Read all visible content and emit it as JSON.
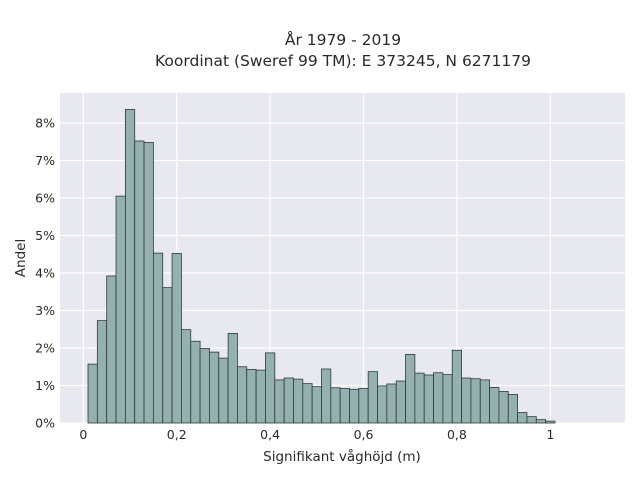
{
  "chart_data": {
    "type": "bar",
    "title_line1": "År 1979 - 2019",
    "title_line2": "Koordinat (Sweref 99 TM): E 373245, N 6271179",
    "xlabel": "Signifikant våghöjd (m)",
    "ylabel": "Andel",
    "xlim": [
      -0.05,
      1.16
    ],
    "ylim": [
      0,
      8.8
    ],
    "x_ticks": [
      0,
      0.2,
      0.4,
      0.6,
      0.8,
      1
    ],
    "x_tick_labels": [
      "0",
      "0,2",
      "0,4",
      "0,6",
      "0,8",
      "1"
    ],
    "y_ticks": [
      0,
      1,
      2,
      3,
      4,
      5,
      6,
      7,
      8
    ],
    "y_tick_labels": [
      "0%",
      "1%",
      "2%",
      "3%",
      "4%",
      "5%",
      "6%",
      "7%",
      "8%"
    ],
    "bin_width": 0.02,
    "bin_start": 0.01,
    "values": [
      1.57,
      2.73,
      3.92,
      6.05,
      8.36,
      7.52,
      7.48,
      4.53,
      3.61,
      4.52,
      2.49,
      2.18,
      1.99,
      1.89,
      1.73,
      2.39,
      1.5,
      1.43,
      1.41,
      1.87,
      1.15,
      1.2,
      1.17,
      1.05,
      0.97,
      1.44,
      0.94,
      0.92,
      0.9,
      0.92,
      1.37,
      0.99,
      1.04,
      1.12,
      1.83,
      1.33,
      1.28,
      1.34,
      1.29,
      1.94,
      1.2,
      1.18,
      1.15,
      0.95,
      0.84,
      0.76,
      0.28,
      0.17,
      0.09,
      0.05
    ],
    "grid": true,
    "colors": {
      "bar_fill": "#95b0b0",
      "bar_edge": "#2f3a3a",
      "plot_bg": "#e8e8f1",
      "grid": "#ffffff"
    }
  }
}
